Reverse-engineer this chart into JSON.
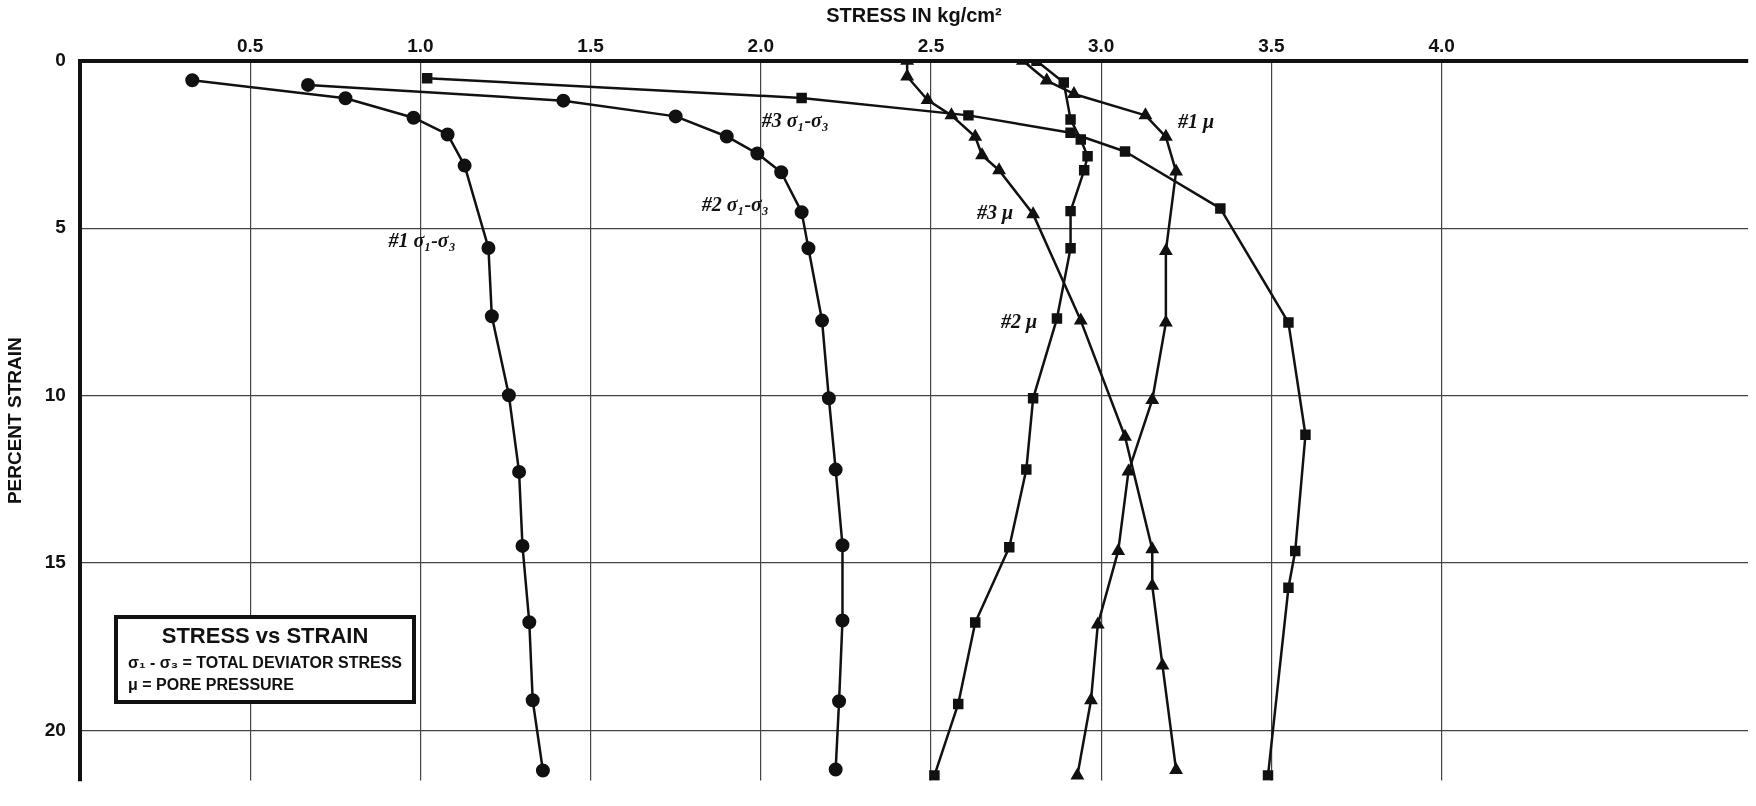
{
  "chart_data": {
    "type": "line",
    "title": "STRESS vs STRAIN",
    "xlabel": "STRESS IN kg/cm²",
    "ylabel": "PERCENT STRAIN",
    "annotations": [
      "σ₁ - σ₃ = TOTAL DEVIATOR STRESS",
      "μ = PORE PRESSURE"
    ],
    "xlim": [
      0,
      4.9
    ],
    "xticks": [
      0.5,
      {
        "value": 1,
        "label": "1.0"
      },
      1.5,
      {
        "value": 2,
        "label": "2.0"
      },
      2.5,
      {
        "value": 3,
        "label": "3.0"
      },
      3.5,
      {
        "value": 4,
        "label": "4.0"
      }
    ],
    "ylim": [
      21.5,
      0
    ],
    "yticks": [
      0,
      5,
      10,
      15,
      20
    ],
    "grid": true,
    "line_style": "solid",
    "series": [
      {
        "name": "#1 σ₁-σ₃",
        "color": "#111111",
        "marker": "circle",
        "x": [
          0.33,
          0.78,
          0.98,
          1.08,
          1.13,
          1.2,
          1.21,
          1.26,
          1.29,
          1.3,
          1.32,
          1.33,
          1.36
        ],
        "values": [
          0.58,
          1.12,
          1.7,
          2.2,
          3.13,
          5.59,
          7.63,
          9.99,
          12.28,
          14.49,
          16.77,
          19.1,
          21.2
        ]
      },
      {
        "name": "#2 σ₁-σ₃",
        "color": "#111111",
        "marker": "circle",
        "x": [
          0.67,
          1.42,
          1.75,
          1.9,
          1.99,
          2.06,
          2.12,
          2.14,
          2.18,
          2.2,
          2.22,
          2.24,
          2.24,
          2.23,
          2.22
        ],
        "values": [
          0.72,
          1.19,
          1.66,
          2.26,
          2.77,
          3.33,
          4.52,
          5.6,
          7.76,
          10.08,
          12.21,
          14.47,
          16.72,
          19.13,
          21.17
        ]
      },
      {
        "name": "#3 σ₁-σ₃",
        "color": "#111111",
        "marker": "square",
        "x": [
          1.02,
          2.12,
          2.61,
          2.91,
          3.07,
          3.35,
          3.55,
          3.6,
          3.57,
          3.55,
          3.49
        ],
        "values": [
          0.52,
          1.11,
          1.63,
          2.15,
          2.71,
          4.41,
          7.82,
          11.17,
          14.64,
          15.74,
          21.35
        ]
      },
      {
        "name": "#1 μ",
        "color": "#111111",
        "marker": "triangle",
        "x": [
          2.77,
          2.84,
          2.92,
          3.13,
          3.19,
          3.22,
          3.19,
          3.19,
          3.15,
          3.08,
          3.05,
          2.99,
          2.97,
          2.93
        ],
        "values": [
          0,
          0.59,
          0.99,
          1.63,
          2.27,
          3.31,
          5.68,
          7.82,
          10.13,
          12.27,
          14.64,
          16.84,
          19.1,
          21.35
        ]
      },
      {
        "name": "#2 μ",
        "color": "#111111",
        "marker": "square",
        "x": [
          2.81,
          2.89,
          2.91,
          2.94,
          2.96,
          2.95,
          2.91,
          2.91,
          2.87,
          2.8,
          2.78,
          2.73,
          2.63,
          2.58,
          2.51
        ],
        "values": [
          0,
          0.65,
          1.75,
          2.35,
          2.85,
          3.27,
          4.49,
          5.6,
          7.7,
          10.08,
          12.21,
          14.53,
          16.78,
          19.21,
          21.35
        ]
      },
      {
        "name": "#3 μ",
        "color": "#111111",
        "marker": "triangle",
        "x": [
          2.43,
          2.43,
          2.49,
          2.56,
          2.63,
          2.65,
          2.7,
          2.8,
          2.94,
          3.07,
          3.15,
          3.15,
          3.18,
          3.22
        ],
        "values": [
          0,
          0.47,
          1.17,
          1.63,
          2.27,
          2.82,
          3.27,
          4.58,
          7.76,
          11.23,
          14.59,
          15.68,
          18.06,
          21.18
        ]
      }
    ]
  }
}
